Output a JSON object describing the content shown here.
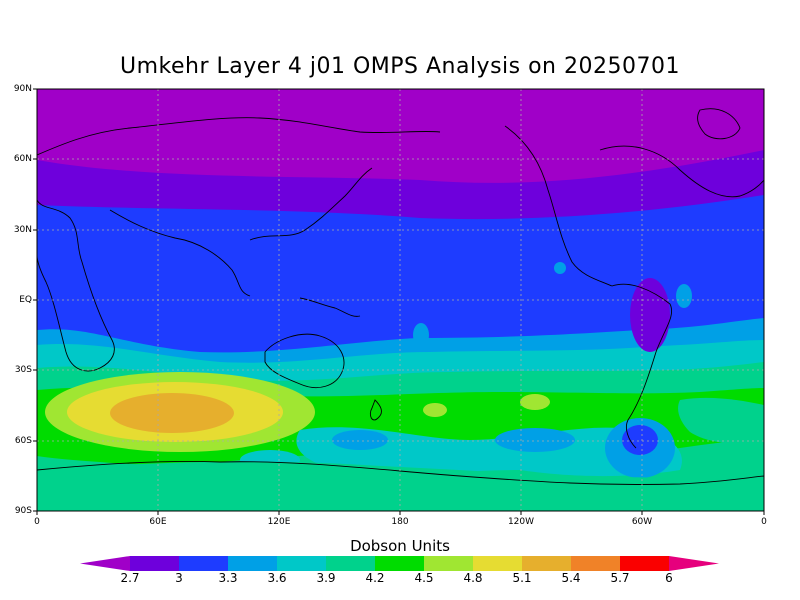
{
  "title": "Umkehr Layer 4 j01 OMPS Analysis on 20250701",
  "axes": {
    "y_ticks": [
      "90N",
      "60N",
      "30N",
      "EQ",
      "30S",
      "60S",
      "90S"
    ],
    "x_ticks": [
      "0",
      "60E",
      "120E",
      "180",
      "120W",
      "60W",
      "0"
    ],
    "grid": "dotted"
  },
  "colorbar": {
    "label": "Dobson Units",
    "levels": [
      "2.7",
      "3",
      "3.3",
      "3.6",
      "3.9",
      "4.2",
      "4.5",
      "4.8",
      "5.1",
      "5.4",
      "5.7",
      "6"
    ],
    "colors": [
      "#a000c8",
      "#6e00dc",
      "#1e3cff",
      "#00a0e6",
      "#00c8c8",
      "#00d28c",
      "#00dc00",
      "#a0e632",
      "#e6dc32",
      "#e6af2d",
      "#f08228",
      "#fa0000",
      "#e6007d"
    ]
  },
  "chart_data": {
    "type": "heatmap",
    "title": "Umkehr Layer 4 j01 OMPS Analysis on 20250701",
    "xlabel": "",
    "ylabel": "",
    "x_range": [
      "0",
      "0"
    ],
    "y_range": [
      "90S",
      "90N"
    ],
    "colorbar_label": "Dobson Units",
    "zonal_bands": [
      {
        "lat_range": [
          "90N",
          "60N"
        ],
        "value_range": [
          2.4,
          2.7
        ]
      },
      {
        "lat_range": [
          "60N",
          "40N"
        ],
        "value_range": [
          2.7,
          3.0
        ]
      },
      {
        "lat_range": [
          "40N",
          "20S"
        ],
        "value_range": [
          3.0,
          3.3
        ]
      },
      {
        "lat_range": [
          "20S",
          "30S"
        ],
        "value_range": [
          3.3,
          3.6
        ]
      },
      {
        "lat_range": [
          "30S",
          "40S"
        ],
        "value_range": [
          3.6,
          4.2
        ]
      },
      {
        "lat_range": [
          "40S",
          "55S"
        ],
        "value_range": [
          4.2,
          4.5
        ]
      },
      {
        "lat_range": [
          "55S",
          "90S"
        ],
        "value_range": [
          3.9,
          4.2
        ]
      }
    ],
    "features": [
      {
        "name": "max over southern Indian Ocean",
        "lon": "65E",
        "lat": "48S",
        "value_range": [
          5.1,
          5.4
        ]
      },
      {
        "name": "min over South America",
        "lon": "60W",
        "lat": "10S",
        "value_range": [
          2.7,
          3.0
        ]
      },
      {
        "name": "min near Drake Passage",
        "lon": "60W",
        "lat": "60S",
        "value_range": [
          3.0,
          3.3
        ]
      }
    ]
  }
}
